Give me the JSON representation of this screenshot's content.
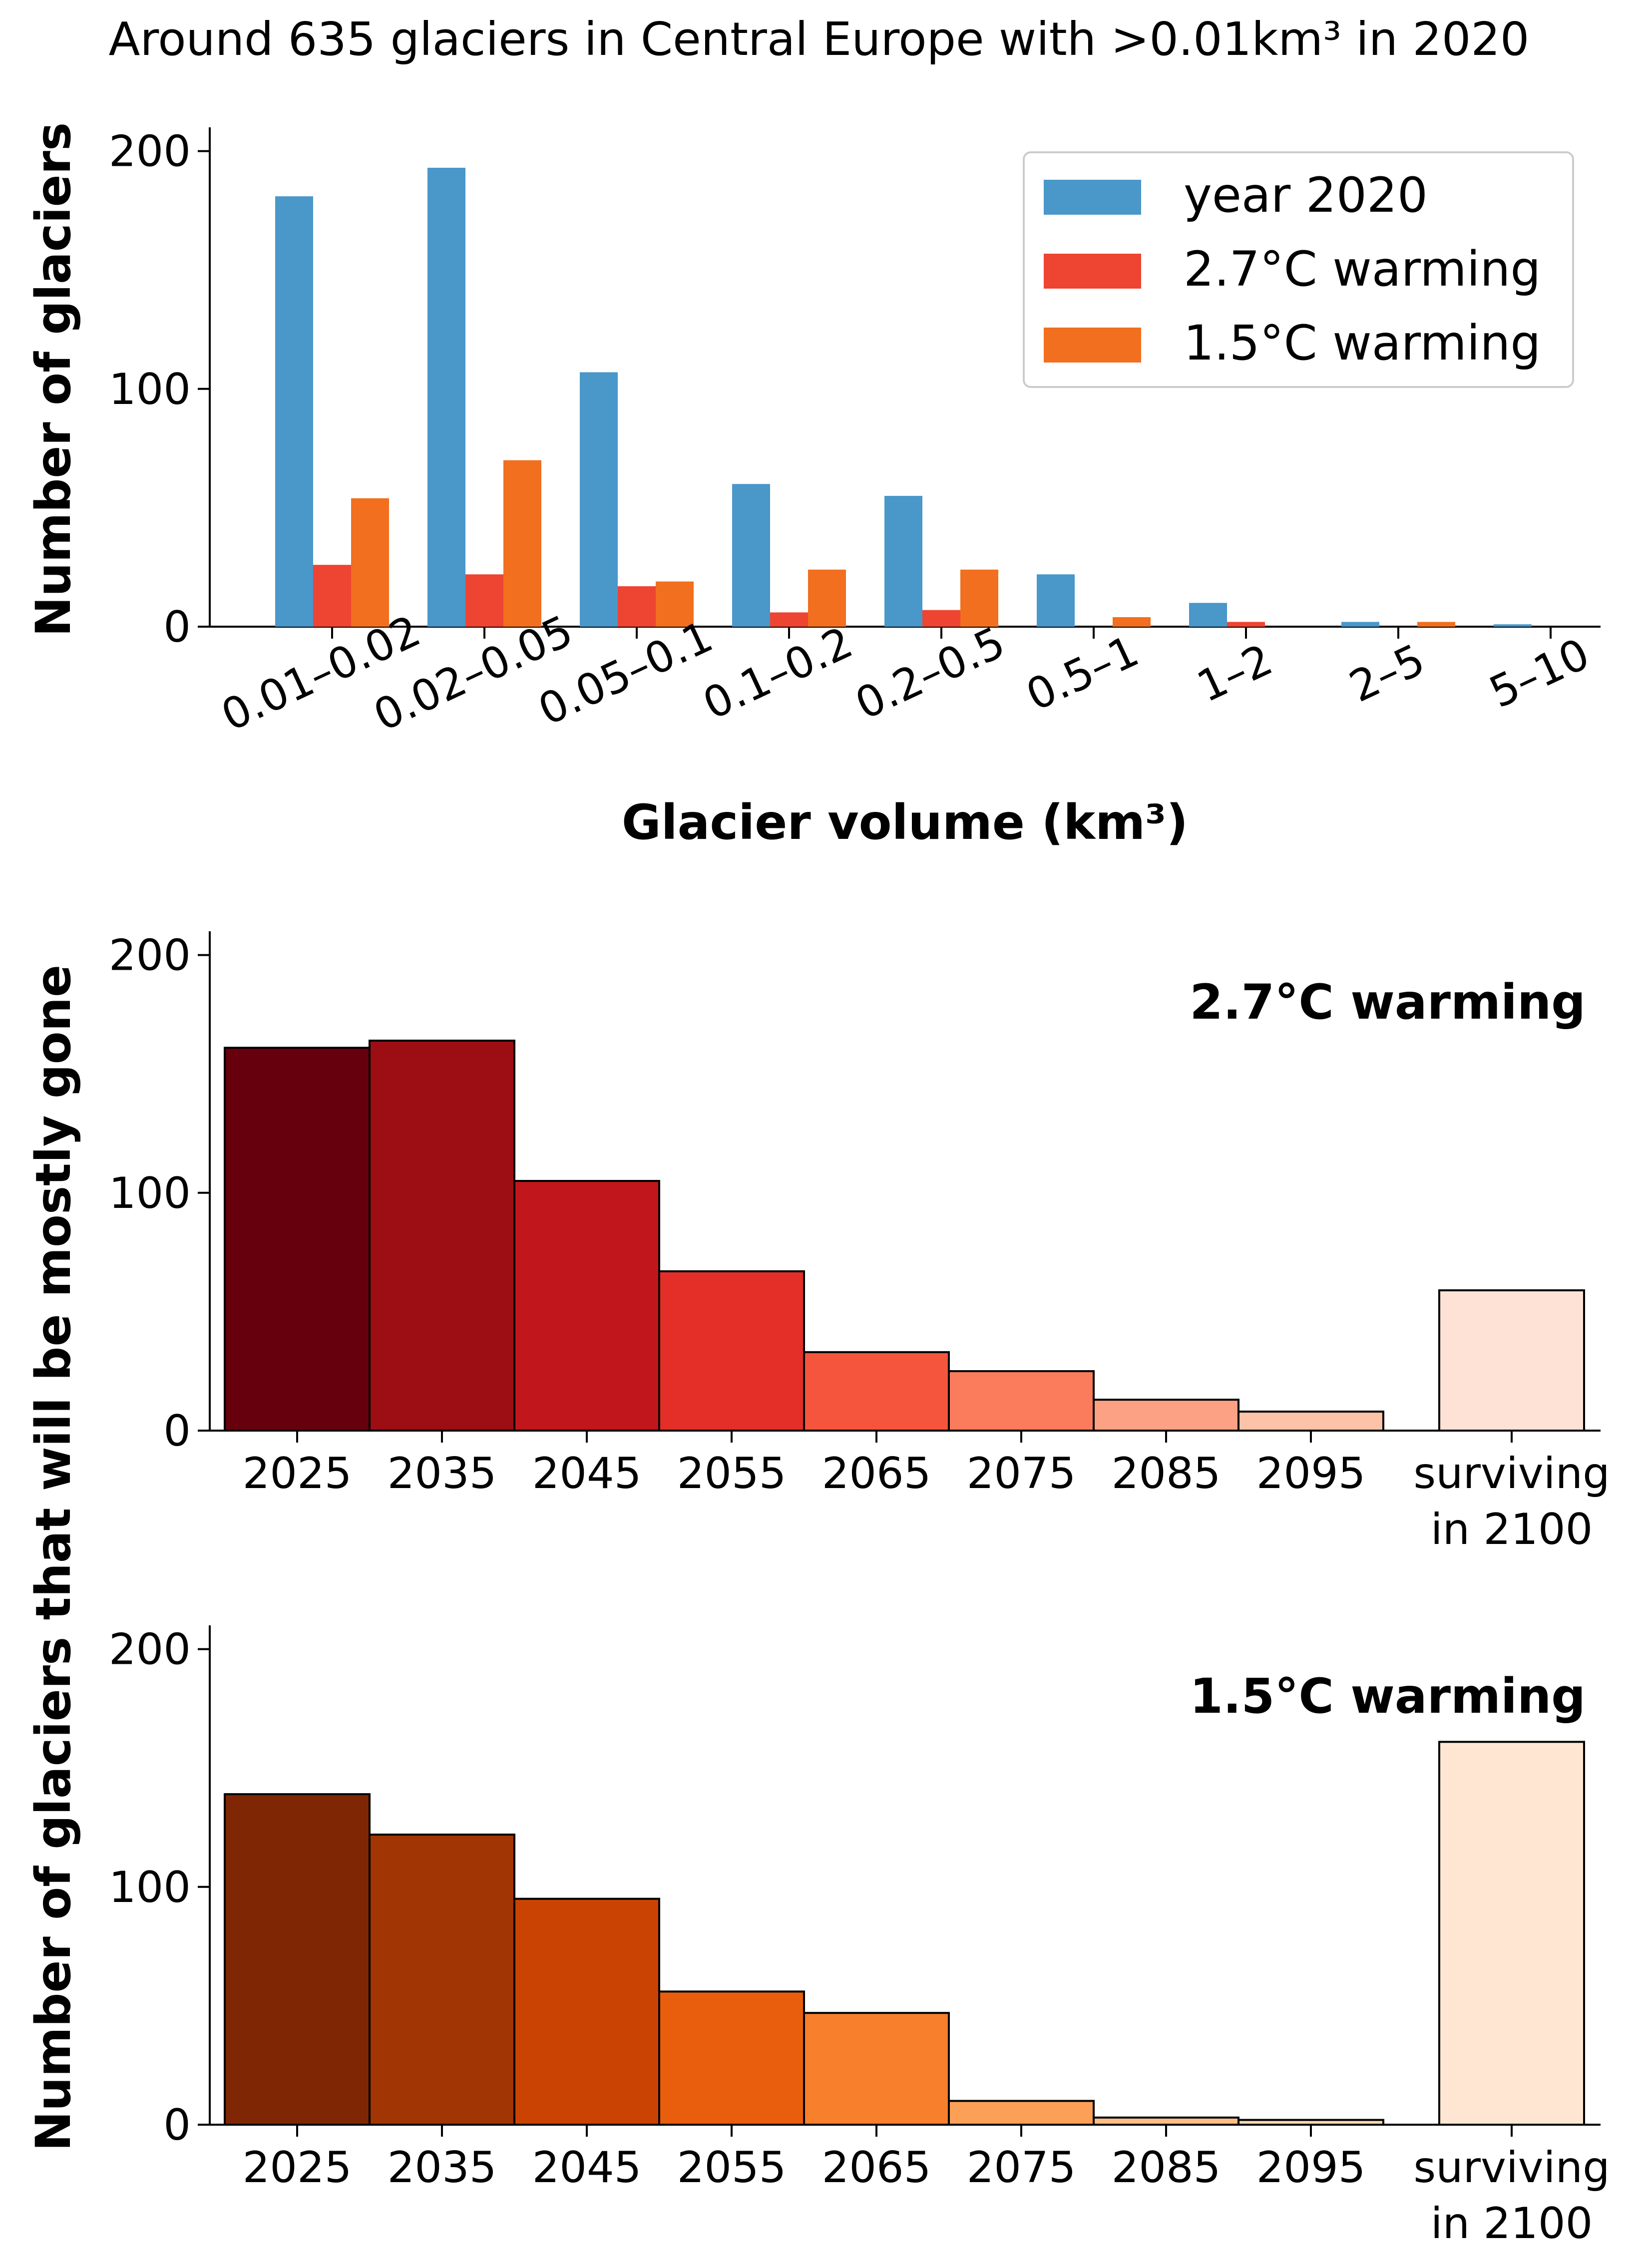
{
  "figure_title": "Around 635 glaciers in Central Europe with >0.01km³ in 2020",
  "shared_ylabel": "Number of glaciers that will be mostly gone",
  "chart_data": [
    {
      "type": "bar",
      "xlabel": "Glacier volume (km³)",
      "ylabel": "Number of glaciers",
      "ylim": [
        0,
        210
      ],
      "yticks": [
        0,
        100,
        200
      ],
      "categories": [
        "0.01–0.02",
        "0.02–0.05",
        "0.05–0.1",
        "0.1–0.2",
        "0.2–0.5",
        "0.5–1",
        "1–2",
        "2–5",
        "5–10"
      ],
      "legend_position": "top-right",
      "series": [
        {
          "name": "year 2020",
          "color": "#4a97c9",
          "values": [
            181,
            193,
            107,
            60,
            55,
            22,
            10,
            2,
            1
          ]
        },
        {
          "name": "2.7°C warming",
          "color": "#ee4432",
          "values": [
            26,
            22,
            17,
            6,
            7,
            0,
            2,
            0,
            0
          ]
        },
        {
          "name": "1.5°C warming",
          "color": "#f16f1e",
          "values": [
            54,
            70,
            19,
            24,
            24,
            4,
            0,
            2,
            0
          ]
        }
      ]
    },
    {
      "type": "bar",
      "panel_label": "2.7°C warming",
      "ylim": [
        0,
        210
      ],
      "yticks": [
        0,
        100,
        200
      ],
      "categories": [
        "2025",
        "2035",
        "2045",
        "2055",
        "2065",
        "2075",
        "2085",
        "2095",
        "surviving in 2100"
      ],
      "values": [
        161,
        164,
        105,
        67,
        33,
        25,
        13,
        8,
        59
      ],
      "colors": [
        "#67000d",
        "#9c0d14",
        "#c0161c",
        "#e32f27",
        "#f6553d",
        "#fb7c5c",
        "#fca183",
        "#fdc3a9",
        "#fee2d5"
      ]
    },
    {
      "type": "bar",
      "panel_label": "1.5°C warming",
      "ylim": [
        0,
        210
      ],
      "yticks": [
        0,
        100,
        200
      ],
      "categories": [
        "2025",
        "2035",
        "2045",
        "2055",
        "2065",
        "2075",
        "2085",
        "2095",
        "surviving in 2100"
      ],
      "values": [
        139,
        122,
        95,
        56,
        47,
        10,
        3,
        2,
        161
      ],
      "colors": [
        "#7f2704",
        "#a13503",
        "#cb4302",
        "#e95e0d",
        "#f87f2c",
        "#fda057",
        "#fdbe85",
        "#fed7b0",
        "#fee6d2"
      ]
    }
  ]
}
